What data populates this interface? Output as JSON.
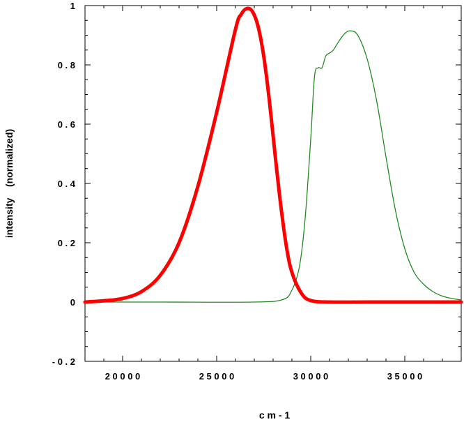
{
  "chart_data": {
    "type": "line",
    "xlabel": "c m - 1",
    "ylabel": "intensity    (normalized)",
    "xlim": [
      18000,
      38000
    ],
    "ylim": [
      -0.2,
      1.0
    ],
    "x_ticks": [
      20000,
      25000,
      30000,
      35000
    ],
    "x_tick_labels": [
      "2 0 0 0 0",
      "2 5 0 0 0",
      "3 0 0 0 0",
      "3 5 0 0 0"
    ],
    "y_ticks": [
      1.0,
      0.8,
      0.6,
      0.4,
      0.2,
      0.0,
      -0.2
    ],
    "y_tick_labels": [
      "1",
      "0 . 8",
      "0 . 6",
      "0 . 4",
      "0 . 2",
      "0",
      "- 0 . 2"
    ],
    "grid": false,
    "series": [
      {
        "color": "#ff0000",
        "x": [
          18000,
          19000,
          20000,
          21000,
          22000,
          23000,
          24000,
          25000,
          26000,
          26300,
          26600,
          26900,
          27200,
          27500,
          27800,
          28100,
          28400,
          28700,
          29000,
          29500,
          30000,
          31000,
          33000,
          36000,
          38000
        ],
        "y": [
          0.0,
          0.004,
          0.012,
          0.035,
          0.09,
          0.2,
          0.39,
          0.64,
          0.92,
          0.97,
          0.99,
          0.98,
          0.93,
          0.83,
          0.68,
          0.5,
          0.33,
          0.19,
          0.1,
          0.03,
          0.005,
          0.0,
          0.0,
          0.0,
          0.0
        ]
      },
      {
        "color": "#228b22",
        "x": [
          18000,
          22000,
          27000,
          28500,
          29000,
          29400,
          29700,
          30000,
          30200,
          30400,
          30600,
          30800,
          31000,
          31200,
          31500,
          31800,
          32100,
          32500,
          33000,
          33500,
          34000,
          34500,
          35000,
          35500,
          36000,
          36500,
          37000,
          37500,
          38000
        ],
        "y": [
          0.0,
          0.0,
          0.0,
          0.008,
          0.04,
          0.12,
          0.28,
          0.55,
          0.76,
          0.79,
          0.79,
          0.83,
          0.84,
          0.85,
          0.88,
          0.905,
          0.915,
          0.9,
          0.82,
          0.68,
          0.49,
          0.31,
          0.18,
          0.1,
          0.06,
          0.035,
          0.02,
          0.012,
          0.007
        ]
      }
    ]
  }
}
